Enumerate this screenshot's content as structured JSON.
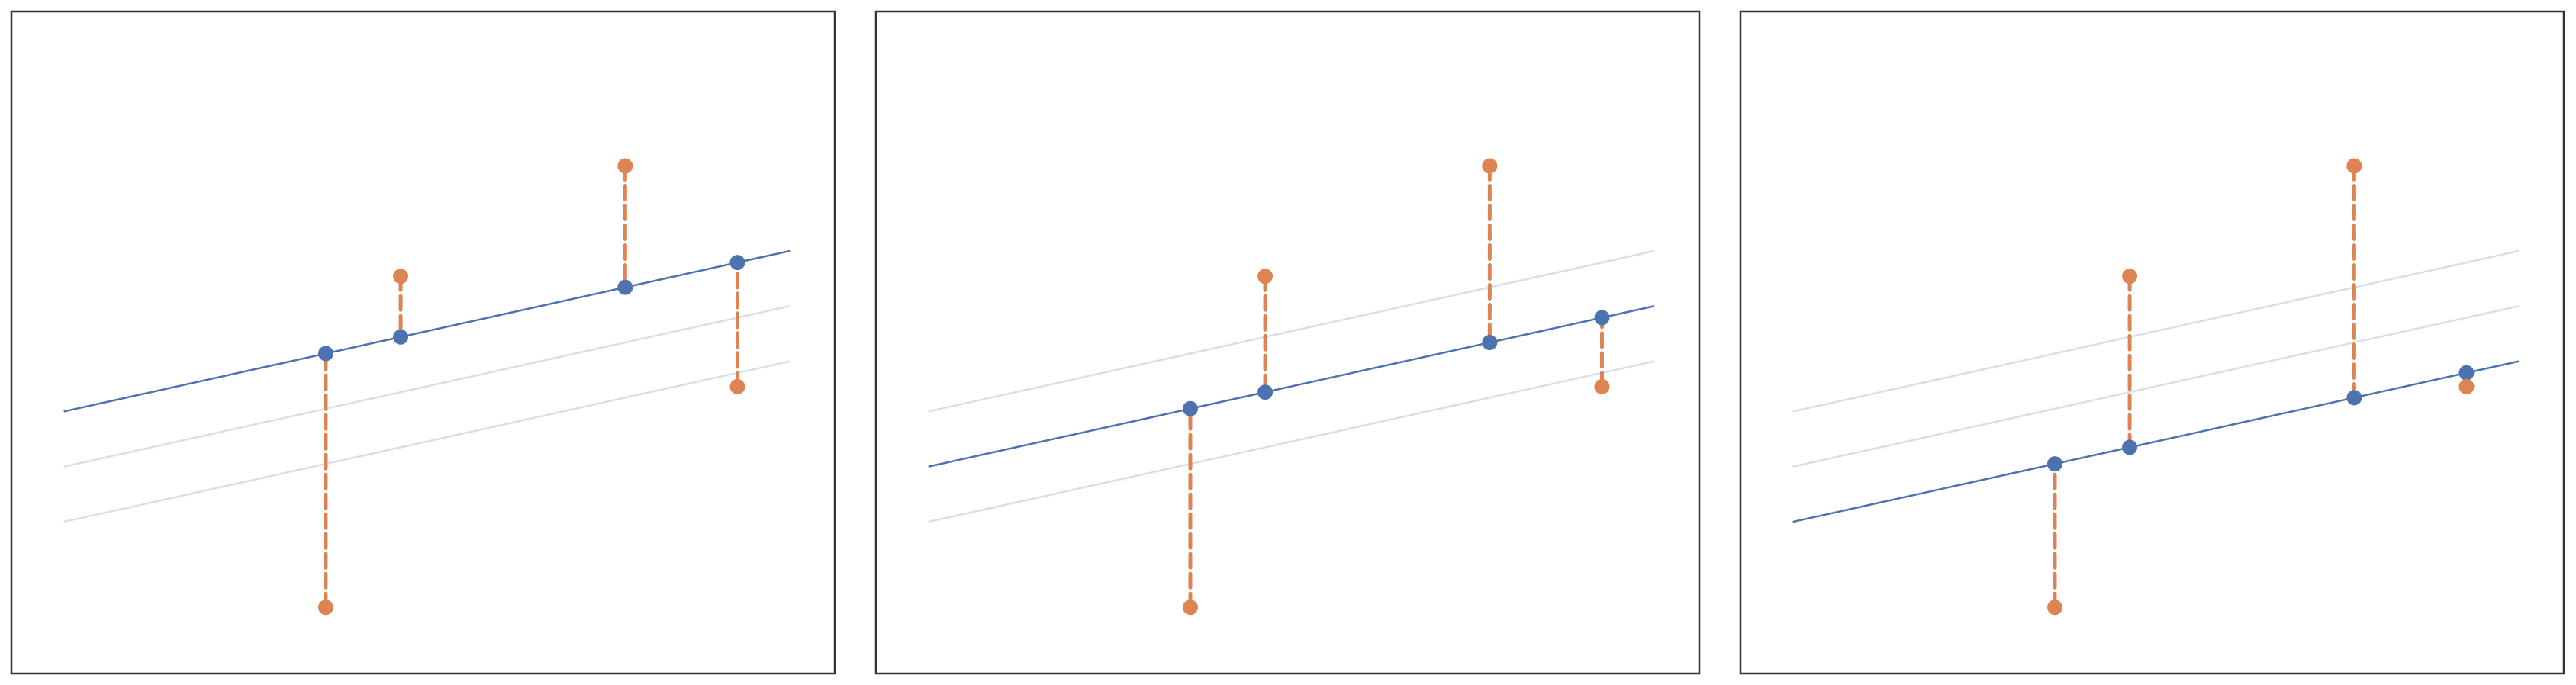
{
  "chart_data": [
    {
      "type": "scatter",
      "title": "",
      "xlabel": "",
      "ylabel": "",
      "grid": false,
      "xlim": [
        -1.1,
        4.4
      ],
      "ylim": [
        -1.6,
        4.4
      ],
      "candidate_lines": [
        {
          "intercept": 1.0,
          "slope": 0.3
        },
        {
          "intercept": 0.5,
          "slope": 0.3
        },
        {
          "intercept": 0.0,
          "slope": 0.3
        }
      ],
      "highlighted_line_index": 0,
      "data_points": {
        "x": [
          1.0,
          1.5,
          3.0,
          3.75
        ],
        "y": [
          -1.0,
          2.0,
          3.0,
          1.0
        ]
      },
      "fitted_points": {
        "x": [
          1.0,
          1.5,
          3.0,
          3.75
        ],
        "y": [
          1.3,
          1.45,
          1.9,
          2.125
        ]
      }
    },
    {
      "type": "scatter",
      "title": "",
      "xlabel": "",
      "ylabel": "",
      "grid": false,
      "xlim": [
        -1.1,
        4.4
      ],
      "ylim": [
        -1.6,
        4.4
      ],
      "candidate_lines": [
        {
          "intercept": 1.0,
          "slope": 0.3
        },
        {
          "intercept": 0.5,
          "slope": 0.3
        },
        {
          "intercept": 0.0,
          "slope": 0.3
        }
      ],
      "highlighted_line_index": 1,
      "data_points": {
        "x": [
          1.0,
          1.5,
          3.0,
          3.75
        ],
        "y": [
          -1.0,
          2.0,
          3.0,
          1.0
        ]
      },
      "fitted_points": {
        "x": [
          1.0,
          1.5,
          3.0,
          3.75
        ],
        "y": [
          0.8,
          0.95,
          1.4,
          1.625
        ]
      }
    },
    {
      "type": "scatter",
      "title": "",
      "xlabel": "",
      "ylabel": "",
      "grid": false,
      "xlim": [
        -1.1,
        4.4
      ],
      "ylim": [
        -1.6,
        4.4
      ],
      "candidate_lines": [
        {
          "intercept": 1.0,
          "slope": 0.3
        },
        {
          "intercept": 0.5,
          "slope": 0.3
        },
        {
          "intercept": 0.0,
          "slope": 0.3
        }
      ],
      "highlighted_line_index": 2,
      "data_points": {
        "x": [
          1.0,
          1.5,
          3.0,
          3.75
        ],
        "y": [
          -1.0,
          2.0,
          3.0,
          1.0
        ]
      },
      "fitted_points": {
        "x": [
          1.0,
          1.5,
          3.0,
          3.75
        ],
        "y": [
          0.3,
          0.45,
          0.9,
          1.125
        ]
      }
    }
  ],
  "colors": {
    "highlight_line": "#4c72b0",
    "faded_line": "#dcdcef",
    "data_point": "#dd8452",
    "residual": "#dd8452",
    "fitted_point": "#4c72b0",
    "frame": "#333333",
    "background": "#ffffff"
  }
}
